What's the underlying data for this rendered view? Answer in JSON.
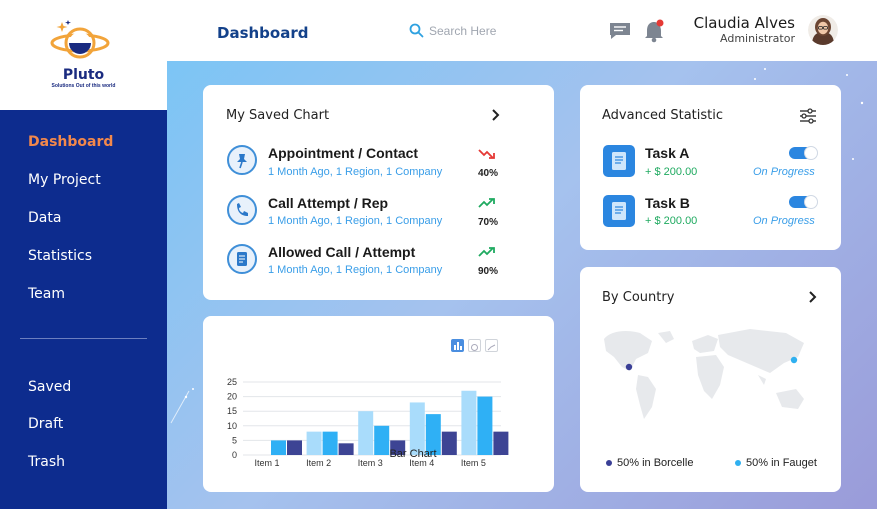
{
  "brand": {
    "name": "Pluto",
    "tagline": "Solutions Out of this world"
  },
  "sidebar": {
    "primary": [
      {
        "label": "Dashboard",
        "active": true
      },
      {
        "label": "My Project",
        "active": false
      },
      {
        "label": "Data",
        "active": false
      },
      {
        "label": "Statistics",
        "active": false
      },
      {
        "label": "Team",
        "active": false
      }
    ],
    "secondary": [
      {
        "label": "Saved"
      },
      {
        "label": "Draft"
      },
      {
        "label": "Trash"
      }
    ]
  },
  "header": {
    "title": "Dashboard",
    "search_placeholder": "Search Here",
    "user": {
      "name": "Claudia Alves",
      "role": "Administrator"
    },
    "notification_badge": true
  },
  "saved_chart": {
    "title": "My Saved Chart",
    "items": [
      {
        "title": "Appointment / Contact",
        "meta": "1 Month Ago, 1 Region, 1 Company",
        "percent": "40%",
        "trend": "down",
        "icon": "pin-icon"
      },
      {
        "title": "Call Attempt / Rep",
        "meta": "1 Month Ago, 1 Region, 1 Company",
        "percent": "70%",
        "trend": "up",
        "icon": "phone-icon"
      },
      {
        "title": "Allowed Call / Attempt",
        "meta": "1 Month Ago, 1 Region, 1 Company",
        "percent": "90%",
        "trend": "up",
        "icon": "document-icon"
      }
    ]
  },
  "advanced_statistic": {
    "title": "Advanced Statistic",
    "tasks": [
      {
        "name": "Task A",
        "amount": "+ $ 200.00",
        "status": "On Progress",
        "enabled": true
      },
      {
        "name": "Task B",
        "amount": "+ $ 200.00",
        "status": "On Progress",
        "enabled": true
      }
    ]
  },
  "by_country": {
    "title": "By Country",
    "legend": [
      {
        "label": "50% in Borcelle",
        "color": "#3a3f96"
      },
      {
        "label": "50% in Fauget",
        "color": "#2fb0f0"
      }
    ]
  },
  "chart_data": {
    "type": "bar",
    "title": "Bar Chart",
    "categories": [
      "Item 1",
      "Item 2",
      "Item 3",
      "Item 4",
      "Item 5"
    ],
    "series": [
      {
        "values": [
          0,
          8,
          15,
          18,
          22
        ],
        "color": "#a9dcfb"
      },
      {
        "values": [
          5,
          8,
          10,
          14,
          20
        ],
        "color": "#2fb0f5"
      },
      {
        "values": [
          5,
          4,
          5,
          8,
          8
        ],
        "color": "#3d4494"
      }
    ],
    "yticks": [
      0,
      5,
      10,
      15,
      20,
      25
    ],
    "ylim": [
      0,
      25
    ],
    "grid": true
  }
}
